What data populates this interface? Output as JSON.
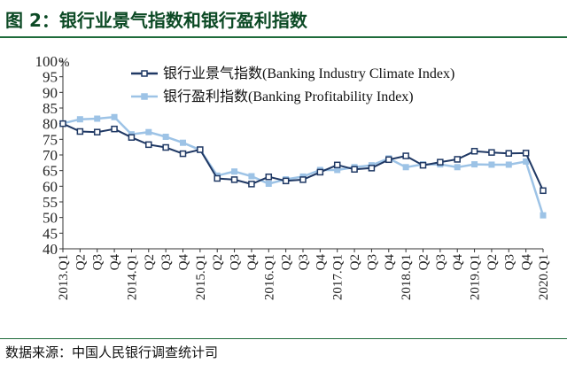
{
  "header": {
    "title": "图 2：银行业景气指数和银行盈利指数"
  },
  "footer": {
    "source": "数据来源：中国人民银行调查统计司"
  },
  "chart_data": {
    "type": "line",
    "title": "图 2：银行业景气指数和银行盈利指数",
    "xlabel": "",
    "ylabel": "",
    "y_unit": "%",
    "ylim": [
      40,
      100
    ],
    "yticks": [
      40,
      45,
      50,
      55,
      60,
      65,
      70,
      75,
      80,
      85,
      90,
      95,
      100
    ],
    "grid": false,
    "legend": "top-right",
    "categories": [
      "2013.Q1",
      "Q2",
      "Q3",
      "Q4",
      "2014.Q1",
      "Q2",
      "Q3",
      "Q4",
      "2015.Q1",
      "Q2",
      "Q3",
      "Q4",
      "2016.Q1",
      "Q2",
      "Q3",
      "Q4",
      "2017.Q1",
      "Q2",
      "Q3",
      "Q4",
      "2018.Q1",
      "Q2",
      "Q3",
      "Q4",
      "2019.Q1",
      "Q2",
      "Q3",
      "Q4",
      "2020.Q1"
    ],
    "series": [
      {
        "name": "银行业景气指数(Banking Industry Climate Index)",
        "color": "#1f3864",
        "marker": "square-open",
        "values": [
          80.0,
          77.5,
          77.3,
          78.3,
          75.6,
          73.3,
          72.4,
          70.4,
          71.7,
          62.5,
          62.1,
          60.7,
          63.0,
          61.7,
          62.1,
          64.5,
          66.8,
          65.4,
          65.8,
          68.5,
          69.7,
          66.7,
          67.7,
          68.6,
          71.2,
          70.8,
          70.5,
          70.6,
          58.6
        ]
      },
      {
        "name": "银行盈利指数(Banking Profitability Index)",
        "color": "#9dc3e6",
        "marker": "square-filled",
        "values": [
          80.1,
          81.4,
          81.6,
          82.1,
          76.6,
          77.3,
          75.8,
          73.9,
          71.6,
          63.4,
          64.7,
          63.2,
          60.8,
          62.2,
          63.1,
          65.2,
          65.2,
          66.1,
          66.7,
          68.9,
          66.1,
          67.0,
          67.0,
          66.1,
          67.0,
          66.9,
          66.9,
          67.9,
          50.7
        ]
      }
    ]
  }
}
